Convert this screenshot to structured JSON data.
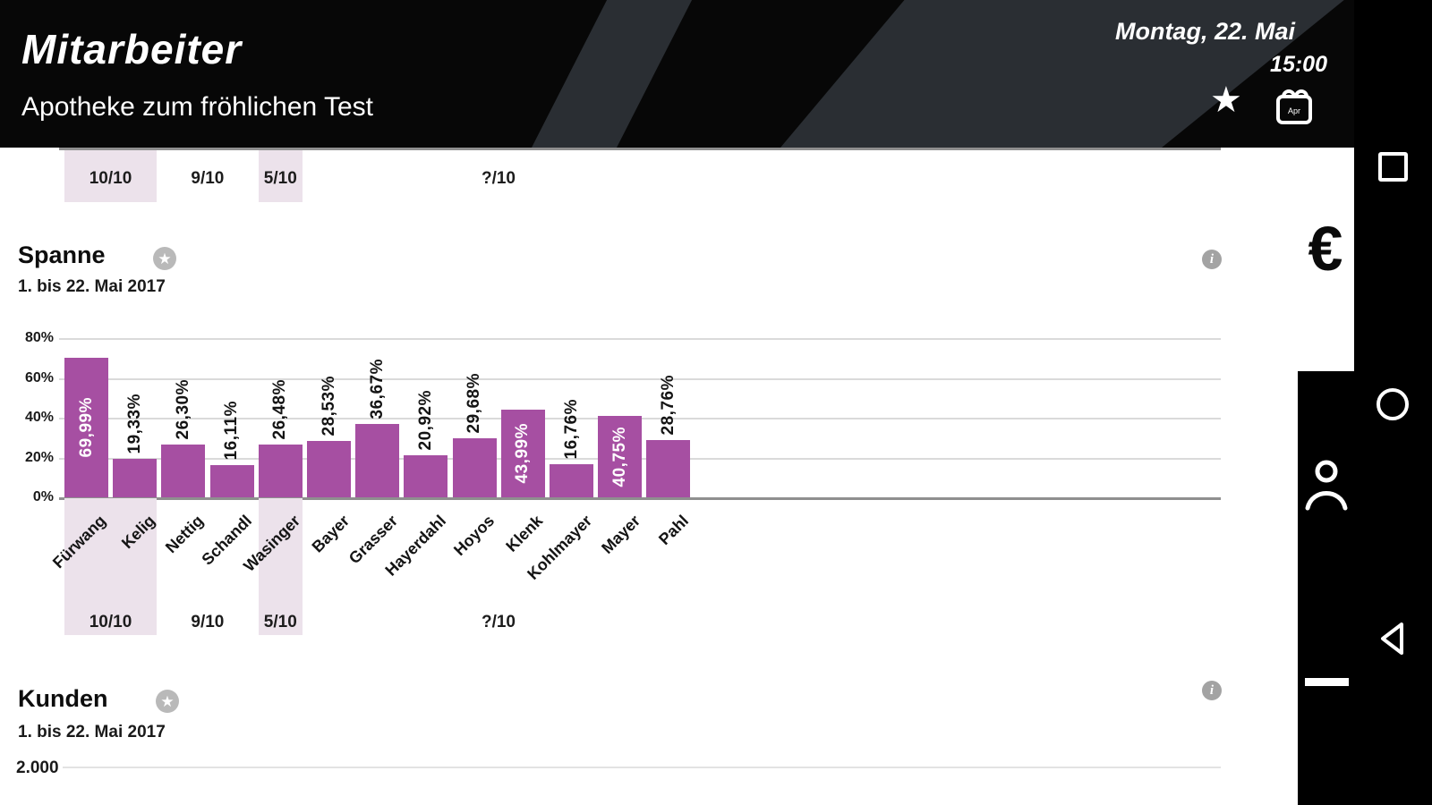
{
  "header": {
    "app_title": "Mitarbeiter",
    "pharmacy_name": "Apotheke zum fröhlichen Test",
    "date": "Montag, 22. Mai",
    "time": "15:00"
  },
  "toolbar": {
    "tabs": [
      {
        "name": "finance",
        "icon": "euro-icon",
        "glyph": "€",
        "active": true
      },
      {
        "name": "employees",
        "icon": "person-icon",
        "active": false
      },
      {
        "name": "menu",
        "icon": "menu-icon",
        "active": false
      }
    ]
  },
  "navbar": {
    "buttons": [
      {
        "name": "recents",
        "icon": "square-icon"
      },
      {
        "name": "home",
        "icon": "circle-icon"
      },
      {
        "name": "back",
        "icon": "back-triangle-icon"
      }
    ]
  },
  "sections": {
    "spanne": {
      "title": "Spanne",
      "subtitle": "1. bis 22. Mai 2017"
    },
    "kunden": {
      "title": "Kunden",
      "subtitle": "1. bis 22. Mai 2017",
      "first_axis_tick": "2.000"
    }
  },
  "chart_data": [
    {
      "id": "spanne",
      "type": "bar",
      "title": "Spanne",
      "subtitle": "1. bis 22. Mai 2017",
      "categories": [
        "Fürwang",
        "Kelig",
        "Nettig",
        "Schandl",
        "Wasinger",
        "Bayer",
        "Grasser",
        "Hayerdahl",
        "Hoyos",
        "Klenk",
        "Kohlmayer",
        "Mayer",
        "Pahl"
      ],
      "values": [
        69.99,
        19.33,
        26.3,
        16.11,
        26.48,
        28.53,
        36.67,
        20.92,
        29.68,
        43.99,
        16.76,
        40.75,
        28.76
      ],
      "value_labels": [
        "69,99%",
        "19,33%",
        "26,30%",
        "16,11%",
        "26,48%",
        "28,53%",
        "36,67%",
        "20,92%",
        "29,68%",
        "43,99%",
        "16,76%",
        "40,75%",
        "28,76%"
      ],
      "y_ticks": [
        "80%",
        "60%",
        "40%",
        "20%",
        "0%"
      ],
      "y_tick_values": [
        80,
        60,
        40,
        20,
        0
      ],
      "ylim": [
        0,
        80
      ],
      "grid": true,
      "bar_color": "#a64fa2",
      "highlight_color": "#ece2eb",
      "inside_label_threshold": 40,
      "groups": [
        {
          "label": "10/10",
          "from": 0,
          "to": 1,
          "highlighted": true
        },
        {
          "label": "9/10",
          "from": 2,
          "to": 3,
          "highlighted": false
        },
        {
          "label": "5/10",
          "from": 4,
          "to": 4,
          "highlighted": true
        },
        {
          "label": "?/10",
          "from": 5,
          "to": 12,
          "highlighted": false
        }
      ]
    },
    {
      "id": "top-partial",
      "type": "bar",
      "note": "chart scrolled off top; only group footer row visible",
      "groups": [
        {
          "label": "10/10",
          "highlighted": true
        },
        {
          "label": "9/10",
          "highlighted": false
        },
        {
          "label": "5/10",
          "highlighted": true
        },
        {
          "label": "?/10",
          "highlighted": false
        }
      ]
    },
    {
      "id": "kunden",
      "type": "bar",
      "title": "Kunden",
      "subtitle": "1. bis 22. Mai 2017",
      "visible_y_ticks": [
        "2.000"
      ],
      "note": "chart cut off at bottom of screen"
    }
  ]
}
